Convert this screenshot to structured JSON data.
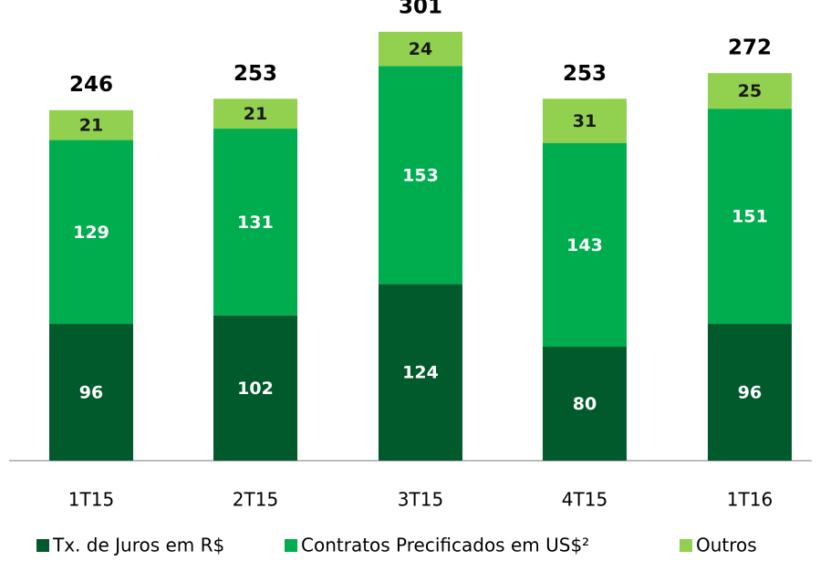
{
  "chart_data": {
    "type": "bar",
    "stacked": true,
    "categories": [
      "1T15",
      "2T15",
      "3T15",
      "4T15",
      "1T16"
    ],
    "series": [
      {
        "name": "Tx. de Juros em R$",
        "color": "#005a2b",
        "label_color": "#ffffff",
        "values": [
          96,
          102,
          124,
          80,
          96
        ]
      },
      {
        "name": "Contratos Precificados em US$²",
        "color": "#00ad4e",
        "label_color": "#ffffff",
        "values": [
          129,
          131,
          153,
          143,
          151
        ]
      },
      {
        "name": "Outros",
        "color": "#92d050",
        "label_color": "#1a1a1a",
        "values": [
          21,
          21,
          24,
          31,
          25
        ]
      }
    ],
    "totals": [
      246,
      253,
      301,
      253,
      272
    ]
  }
}
